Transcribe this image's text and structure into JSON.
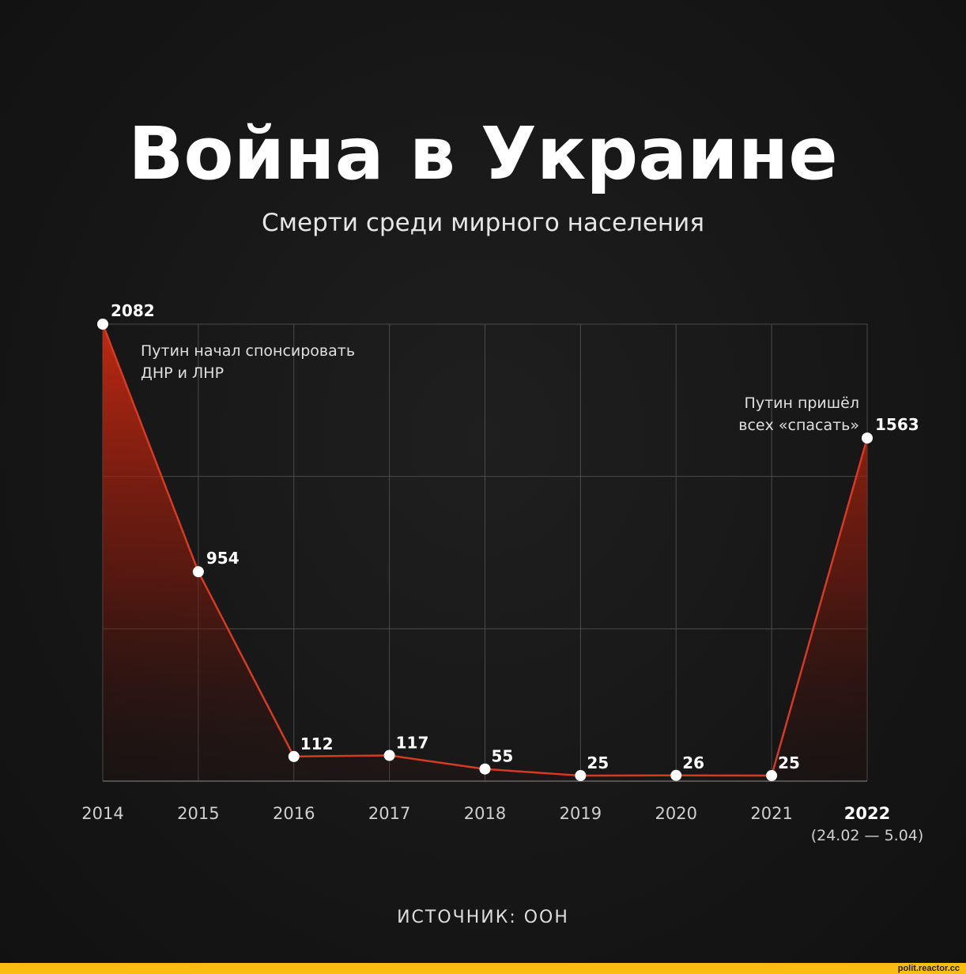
{
  "title": "Война в Украине",
  "subtitle": "Смерти среди мирного населения",
  "source": "ИСТОЧНИК: ООН",
  "footer": "polit.reactor.cc",
  "colors": {
    "line": "#d63a22",
    "fill_top": "#c82a12",
    "grid": "#4a4a4a",
    "point": "#ffffff"
  },
  "chart_data": {
    "type": "area",
    "x": [
      "2014",
      "2015",
      "2016",
      "2017",
      "2018",
      "2019",
      "2020",
      "2021",
      "2022"
    ],
    "x_sublabels": [
      "",
      "",
      "",
      "",
      "",
      "",
      "",
      "",
      "(24.02 — 5.04)"
    ],
    "values": [
      2082,
      954,
      112,
      117,
      55,
      25,
      26,
      25,
      1563
    ],
    "labels": [
      "2082",
      "954",
      "112",
      "117",
      "55",
      "25",
      "26",
      "25",
      "1563"
    ],
    "bold_x_index": 8,
    "ylim": [
      0,
      2082
    ],
    "grid": true,
    "annotations": [
      {
        "text": [
          "Путин начал спонсировать",
          "ДНР и ЛНР"
        ],
        "near_index": 0,
        "align": "start"
      },
      {
        "text": [
          "Путин пришёл",
          "всех «спасать»"
        ],
        "near_index": 8,
        "align": "end"
      }
    ]
  }
}
